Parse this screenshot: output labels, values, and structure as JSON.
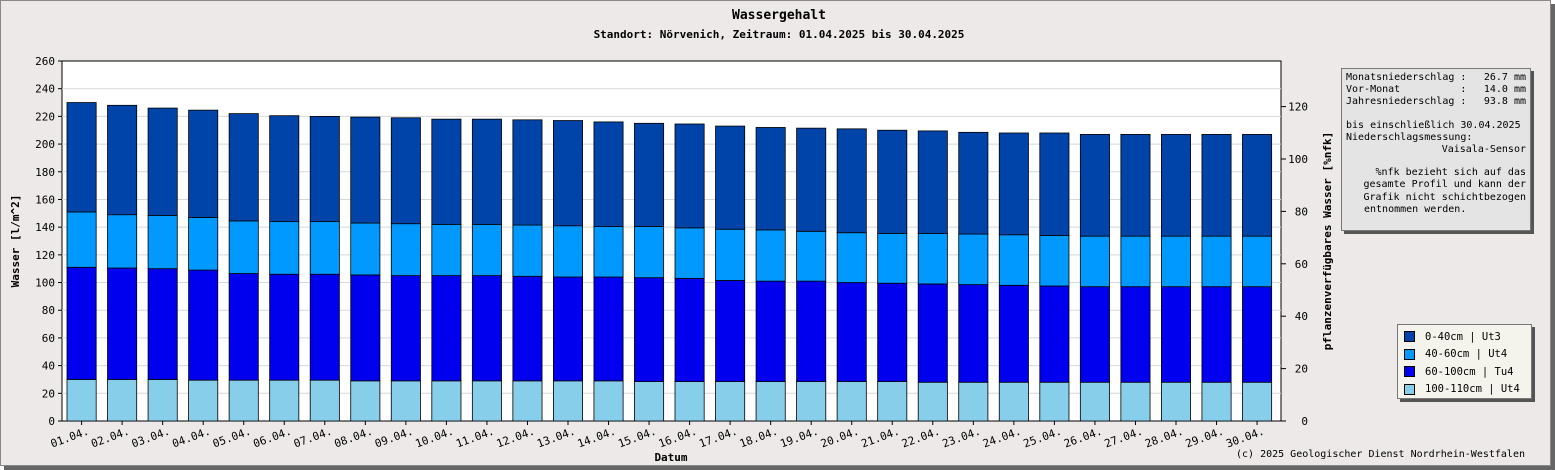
{
  "chart_data": {
    "type": "bar",
    "stacked": true,
    "title": "Wassergehalt",
    "subtitle": "Standort: Nörvenich, Zeitraum: 01.04.2025 bis 30.04.2025",
    "xlabel": "Datum",
    "ylabel": "Wasser [l/m^2]",
    "y2label": "pflanzenverfügbares Wasser [%nfk]",
    "ylim": [
      0,
      260
    ],
    "yticks": [
      0,
      20,
      40,
      60,
      80,
      100,
      120,
      140,
      160,
      180,
      200,
      220,
      240,
      260
    ],
    "y2ticks": [
      0,
      20,
      40,
      60,
      80,
      100,
      120
    ],
    "categories": [
      "01.04.",
      "02.04.",
      "03.04.",
      "04.04.",
      "05.04.",
      "06.04.",
      "07.04.",
      "08.04.",
      "09.04.",
      "10.04.",
      "11.04.",
      "12.04.",
      "13.04.",
      "14.04.",
      "15.04.",
      "16.04.",
      "17.04.",
      "18.04.",
      "19.04.",
      "20.04.",
      "21.04.",
      "22.04.",
      "23.04.",
      "24.04.",
      "25.04.",
      "26.04.",
      "27.04.",
      "28.04.",
      "29.04.",
      "30.04."
    ],
    "series": [
      {
        "name": "100-110cm | Ut4",
        "color": "#87ceeb",
        "values": [
          30,
          30,
          30,
          29.5,
          29.5,
          29.5,
          29.5,
          29,
          29,
          29,
          29,
          29,
          29,
          29,
          28.5,
          28.5,
          28.5,
          28.5,
          28.5,
          28.5,
          28.5,
          28,
          28,
          28,
          28,
          28,
          28,
          28,
          28,
          28
        ]
      },
      {
        "name": "60-100cm | Tu4",
        "color": "#0000ee",
        "values": [
          81,
          80.5,
          80,
          79.5,
          77,
          76.5,
          76.5,
          76.5,
          76,
          76,
          76,
          75.5,
          75,
          75,
          75,
          74.5,
          73,
          72.5,
          72.5,
          71.5,
          71,
          71,
          70.5,
          70,
          69.5,
          69,
          69,
          69,
          69,
          69
        ]
      },
      {
        "name": "40-60cm | Ut4",
        "color": "#0099ff",
        "values": [
          40,
          38.5,
          38.5,
          38,
          38,
          38,
          38,
          37.5,
          37.5,
          37,
          37,
          37,
          37,
          36.5,
          37,
          36.5,
          37,
          37,
          36,
          36,
          36,
          36.5,
          36.5,
          36.5,
          36.5,
          36.5,
          36.5,
          36.5,
          36.5,
          36.5
        ]
      },
      {
        "name": "0-40cm | Ut3",
        "color": "#0044aa",
        "values": [
          79,
          79,
          77.5,
          77.5,
          77.5,
          76.5,
          76,
          76.5,
          76.5,
          76,
          76,
          76,
          76,
          75.5,
          74.5,
          75,
          74.5,
          74,
          74.5,
          75,
          74.5,
          74,
          73.5,
          73.5,
          74,
          73.5,
          73.5,
          73.5,
          73.5,
          73.5
        ]
      }
    ],
    "legend_position": "bottom-right",
    "grid": true
  },
  "info": {
    "monatsniederschlag_label": "Monatsniederschlag :",
    "monatsniederschlag_value": "26.7 mm",
    "vormonat_label": "Vor-Monat          :",
    "vormonat_value": "14.0 mm",
    "jahresniederschlag_label": "Jahresniederschlag :",
    "jahresniederschlag_value": "93.8 mm",
    "bis_line": "bis einschließlich 30.04.2025",
    "messung_line": "Niederschlagsmessung:",
    "sensor": "Vaisala-Sensor",
    "note1": "%nfk bezieht sich auf das",
    "note2": "gesamte Profil und kann der",
    "note3": "Grafik nicht schichtbezogen",
    "note4": "entnommen werden."
  },
  "legend": [
    {
      "label": "0-40cm | Ut3",
      "color": "#0044aa"
    },
    {
      "label": "40-60cm | Ut4",
      "color": "#0099ff"
    },
    {
      "label": "60-100cm | Tu4",
      "color": "#0000ee"
    },
    {
      "label": "100-110cm | Ut4",
      "color": "#87ceeb"
    }
  ],
  "copyright": "(c) 2025 Geologischer Dienst Nordrhein-Westfalen"
}
